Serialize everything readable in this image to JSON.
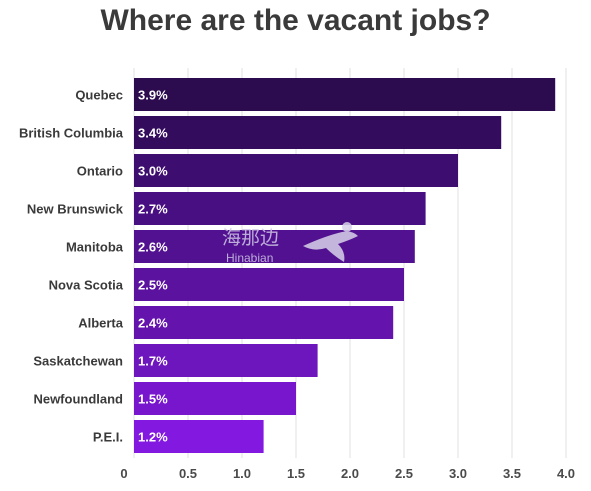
{
  "chart_data": {
    "type": "bar",
    "orientation": "horizontal",
    "title": "Where are the vacant jobs?",
    "xlabel": "",
    "ylabel": "",
    "categories": [
      "Quebec",
      "British Columbia",
      "Ontario",
      "New Brunswick",
      "Manitoba",
      "Nova Scotia",
      "Alberta",
      "Saskatchewan",
      "Newfoundland",
      "P.E.I."
    ],
    "values": [
      3.9,
      3.4,
      3.0,
      2.7,
      2.6,
      2.5,
      2.4,
      1.7,
      1.5,
      1.2
    ],
    "data_labels": [
      "3.9%",
      "3.4%",
      "3.0%",
      "2.7%",
      "2.6%",
      "2.5%",
      "2.4%",
      "1.7%",
      "1.5%",
      "1.2%"
    ],
    "bar_colors": [
      "#2c0c4e",
      "#340c5e",
      "#3e0d70",
      "#480f82",
      "#521190",
      "#5b129f",
      "#6413ad",
      "#6e16bd",
      "#7716cc",
      "#8319e0"
    ],
    "xlim": [
      0,
      4.0
    ],
    "xticks": [
      "0",
      "0.5",
      "1.0",
      "1.5",
      "2.0",
      "2.5",
      "3.0",
      "3.5",
      "4.0"
    ],
    "grid": true,
    "legend": "none"
  },
  "watermark": {
    "text_cn": "海那边",
    "text_en": "Hinabian"
  }
}
